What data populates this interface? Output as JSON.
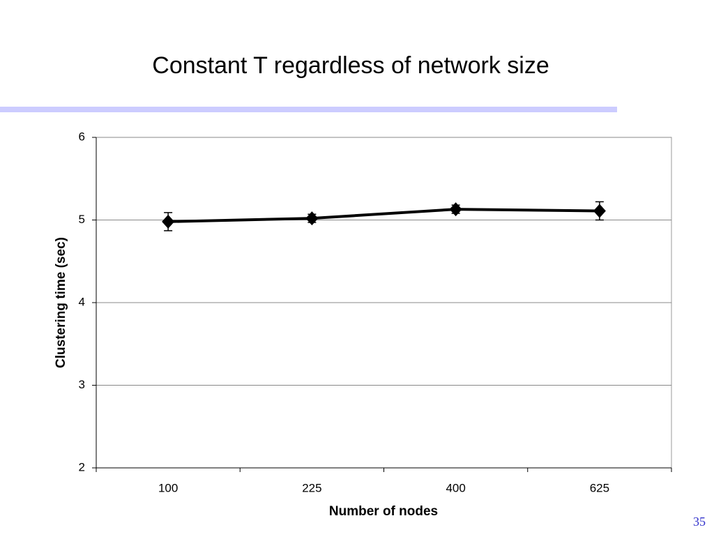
{
  "slide": {
    "title": "Constant T  regardless of network size",
    "page_number": "35"
  },
  "chart_data": {
    "type": "line",
    "x_label": "Number of nodes",
    "y_label": "Clustering time (sec)",
    "categories": [
      "100",
      "225",
      "400",
      "625"
    ],
    "values": [
      4.98,
      5.02,
      5.13,
      5.11
    ],
    "errors": [
      0.11,
      0.05,
      0.05,
      0.11
    ],
    "color": "#000000",
    "ylim": [
      2,
      6
    ],
    "yticks": [
      2,
      3,
      4,
      5,
      6
    ],
    "grid": true
  }
}
